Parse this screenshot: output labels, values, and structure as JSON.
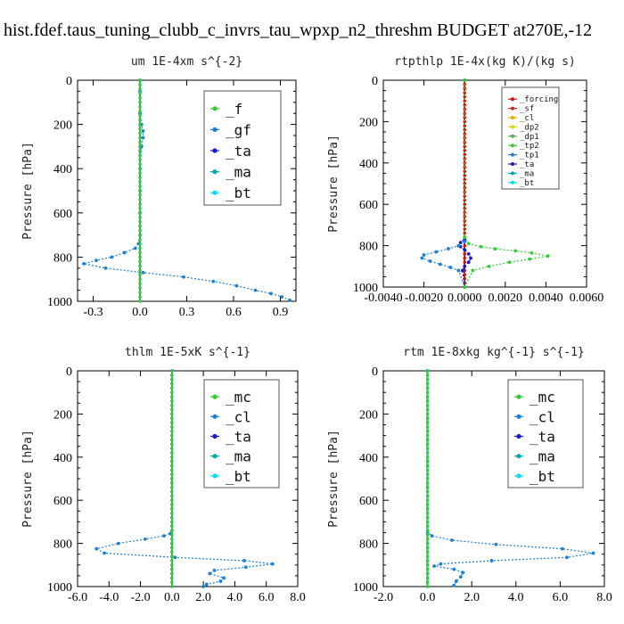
{
  "title": "hist.fdef.taus_tuning_clubb_c_invrs_tau_wpxp_n2_threshm  BUDGET at270E,-12",
  "colors": {
    "f": "#33cc33",
    "gf": "#1e7fd0",
    "ta": "#1a1acc",
    "ma": "#00aaaa",
    "bt": "#00ddee",
    "mc": "#33cc33",
    "cl": "#1e7fd0",
    "forcing": "#cc1111",
    "sf": "#cc2222",
    "cl_small": "#e8a800",
    "dp2": "#d8d800",
    "dp1": "#55aa55",
    "tp2": "#33cc33",
    "tp1": "#1e7fd0"
  },
  "chart_data": [
    {
      "type": "line",
      "title": "um   1E-4xm s^{-2}",
      "ylabel": "Pressure [hPa]",
      "xlim": [
        -0.4,
        1.0
      ],
      "ylim": [
        1000,
        0
      ],
      "xticks": [
        -0.3,
        0.0,
        0.3,
        0.6,
        0.9
      ],
      "xticklabels": [
        "-0.3",
        "0.0",
        "0.3",
        "0.6",
        "0.9"
      ],
      "yticks": [
        0,
        200,
        400,
        600,
        800,
        1000
      ],
      "yticklabels": [
        "0",
        "200",
        "400",
        "600",
        "800",
        "1000"
      ],
      "legend": [
        "_f",
        "_gf",
        "_ta",
        "_ma",
        "_bt"
      ],
      "series": [
        {
          "name": "_f",
          "color_key": "f",
          "x": [
            0,
            0,
            0,
            0,
            0,
            0,
            0,
            0,
            0,
            0,
            0
          ],
          "y": [
            0,
            100,
            200,
            300,
            400,
            500,
            600,
            700,
            800,
            900,
            1000
          ]
        },
        {
          "name": "_gf",
          "color_key": "gf",
          "x": [
            0,
            0,
            0,
            0.01,
            0.02,
            0.02,
            0.01,
            0,
            0,
            0,
            0,
            -0.01,
            -0.03,
            -0.1,
            -0.18,
            -0.28,
            -0.36,
            -0.22,
            0.02,
            0.28,
            0.47,
            0.62,
            0.74,
            0.84,
            0.91,
            0.96
          ],
          "y": [
            0,
            50,
            150,
            200,
            230,
            260,
            300,
            400,
            500,
            600,
            700,
            740,
            760,
            780,
            800,
            815,
            830,
            850,
            870,
            890,
            910,
            930,
            950,
            965,
            980,
            995
          ]
        },
        {
          "name": "_ta",
          "color_key": "ta",
          "x": [
            0,
            0,
            0,
            0,
            0
          ],
          "y": [
            0,
            250,
            500,
            750,
            1000
          ]
        },
        {
          "name": "_ma",
          "color_key": "ma",
          "x": [
            0,
            0,
            0,
            0,
            0
          ],
          "y": [
            0,
            250,
            500,
            750,
            1000
          ]
        },
        {
          "name": "_bt",
          "color_key": "bt",
          "x": [
            0,
            0,
            0,
            0,
            0
          ],
          "y": [
            0,
            250,
            500,
            750,
            1000
          ]
        }
      ]
    },
    {
      "type": "line",
      "title": "rtpthlp   1E-4x(kg K)/(kg s)",
      "ylabel": "Pressure [hPa]",
      "xlim": [
        -0.004,
        0.006
      ],
      "ylim": [
        1000,
        0
      ],
      "xticks": [
        -0.004,
        -0.002,
        0.0,
        0.002,
        0.004,
        0.006
      ],
      "xticklabels": [
        "-0.0040",
        "-0.0020",
        "0.0000",
        "0.0020",
        "0.0040",
        "0.0060"
      ],
      "yticks": [
        0,
        200,
        400,
        600,
        800,
        1000
      ],
      "yticklabels": [
        "0",
        "200",
        "400",
        "600",
        "800",
        "1000"
      ],
      "legend": [
        "_forcing",
        "_sf",
        "_cl",
        "_dp2",
        "_dp1",
        "_tp2",
        "_tp1",
        "_ta",
        "_ma",
        "_bt"
      ],
      "series": [
        {
          "name": "_tp2",
          "color_key": "tp2",
          "x": [
            0,
            0,
            0.0002,
            0.0008,
            0.0015,
            0.0025,
            0.0033,
            0.0041,
            0.0032,
            0.0022,
            0.0012,
            0.0004,
            0
          ],
          "y": [
            0,
            760,
            790,
            805,
            815,
            825,
            835,
            850,
            865,
            880,
            900,
            920,
            1000
          ]
        },
        {
          "name": "_tp1",
          "color_key": "tp1",
          "x": [
            0,
            0,
            -0.0003,
            -0.0008,
            -0.0014,
            -0.002,
            -0.0021,
            -0.0017,
            -0.0012,
            -0.0007,
            -0.0003,
            0
          ],
          "y": [
            0,
            780,
            800,
            815,
            830,
            845,
            860,
            875,
            890,
            905,
            920,
            1000
          ]
        },
        {
          "name": "_ta",
          "color_key": "ta",
          "x": [
            0,
            0,
            -0.0002,
            -0.0002,
            0,
            0.0002,
            0.0003,
            0.0002,
            0,
            -0.0001,
            0
          ],
          "y": [
            0,
            770,
            785,
            805,
            820,
            840,
            860,
            880,
            900,
            920,
            1000
          ]
        },
        {
          "name": "_forcing",
          "color_key": "forcing",
          "x": [
            0,
            0,
            0,
            0,
            0,
            0,
            0,
            0,
            0,
            0,
            0
          ],
          "y": [
            0,
            100,
            200,
            300,
            400,
            500,
            600,
            700,
            800,
            900,
            1000
          ]
        },
        {
          "name": "_sf",
          "color_key": "sf",
          "x": [
            0,
            0
          ],
          "y": [
            0,
            1000
          ]
        },
        {
          "name": "_cl",
          "color_key": "cl_small",
          "x": [
            0,
            0
          ],
          "y": [
            0,
            1000
          ]
        },
        {
          "name": "_dp2",
          "color_key": "dp2",
          "x": [
            0,
            0
          ],
          "y": [
            0,
            1000
          ]
        },
        {
          "name": "_dp1",
          "color_key": "dp1",
          "x": [
            0,
            0
          ],
          "y": [
            0,
            1000
          ]
        },
        {
          "name": "_ma",
          "color_key": "ma",
          "x": [
            0,
            0
          ],
          "y": [
            0,
            1000
          ]
        },
        {
          "name": "_bt",
          "color_key": "bt",
          "x": [
            0,
            0
          ],
          "y": [
            0,
            1000
          ]
        }
      ]
    },
    {
      "type": "line",
      "title": "thlm   1E-5xK s^{-1}",
      "ylabel": "Pressure [hPa]",
      "xlim": [
        -6.0,
        8.0
      ],
      "ylim": [
        1000,
        0
      ],
      "xticks": [
        -6,
        -4,
        -2,
        0,
        2,
        4,
        6,
        8
      ],
      "xticklabels": [
        "-6.0",
        "-4.0",
        "-2.0",
        "0.0",
        "2.0",
        "4.0",
        "6.0",
        "8.0"
      ],
      "yticks": [
        0,
        200,
        400,
        600,
        800,
        1000
      ],
      "yticklabels": [
        "0",
        "200",
        "400",
        "600",
        "800",
        "1000"
      ],
      "legend": [
        "_mc",
        "_cl",
        "_ta",
        "_ma",
        "_bt"
      ],
      "series": [
        {
          "name": "_mc",
          "color_key": "mc",
          "x": [
            0,
            0,
            0,
            0,
            0,
            0,
            0,
            0,
            0,
            0,
            0
          ],
          "y": [
            0,
            100,
            200,
            300,
            400,
            500,
            600,
            700,
            800,
            900,
            1000
          ]
        },
        {
          "name": "_cl",
          "color_key": "cl",
          "x": [
            0,
            0,
            -0.1,
            -0.5,
            -1.7,
            -3.4,
            -4.8,
            -4.3,
            0.2,
            4.6,
            6.4,
            4.7,
            2.7,
            2.4,
            3.3,
            3.1,
            2.2,
            2.0
          ],
          "y": [
            0,
            740,
            755,
            765,
            780,
            800,
            825,
            845,
            865,
            880,
            895,
            910,
            925,
            940,
            960,
            975,
            990,
            1000
          ]
        },
        {
          "name": "_ta",
          "color_key": "ta",
          "x": [
            0,
            0,
            0,
            0,
            0
          ],
          "y": [
            0,
            250,
            500,
            750,
            1000
          ]
        },
        {
          "name": "_ma",
          "color_key": "ma",
          "x": [
            0,
            0,
            0,
            0,
            0
          ],
          "y": [
            0,
            250,
            500,
            750,
            1000
          ]
        },
        {
          "name": "_bt",
          "color_key": "bt",
          "x": [
            0,
            0,
            0,
            0,
            0
          ],
          "y": [
            0,
            250,
            500,
            750,
            1000
          ]
        }
      ]
    },
    {
      "type": "line",
      "title": "rtm   1E-8xkg kg^{-1} s^{-1}",
      "ylabel": "Pressure [hPa]",
      "xlim": [
        -2.0,
        8.0
      ],
      "ylim": [
        1000,
        0
      ],
      "xticks": [
        -2,
        0,
        2,
        4,
        6,
        8
      ],
      "xticklabels": [
        "-2.0",
        "0.0",
        "2.0",
        "4.0",
        "6.0",
        "8.0"
      ],
      "yticks": [
        0,
        200,
        400,
        600,
        800,
        1000
      ],
      "yticklabels": [
        "0",
        "200",
        "400",
        "600",
        "800",
        "1000"
      ],
      "legend": [
        "_mc",
        "_cl",
        "_ta",
        "_ma",
        "_bt"
      ],
      "series": [
        {
          "name": "_mc",
          "color_key": "mc",
          "x": [
            0,
            0,
            0,
            0,
            0,
            0,
            0,
            0,
            0,
            0,
            0
          ],
          "y": [
            0,
            100,
            200,
            300,
            400,
            500,
            600,
            700,
            800,
            900,
            1000
          ]
        },
        {
          "name": "_cl",
          "color_key": "cl",
          "x": [
            0,
            0,
            0.2,
            1.1,
            3.1,
            6.1,
            7.5,
            6.3,
            2.9,
            0.6,
            0.3,
            1.2,
            1.6,
            1.5,
            1.3,
            1.2
          ],
          "y": [
            0,
            750,
            765,
            785,
            805,
            825,
            845,
            865,
            880,
            895,
            905,
            920,
            935,
            955,
            975,
            995
          ]
        },
        {
          "name": "_ta",
          "color_key": "ta",
          "x": [
            0,
            0,
            0,
            0,
            0
          ],
          "y": [
            0,
            250,
            500,
            750,
            1000
          ]
        },
        {
          "name": "_ma",
          "color_key": "ma",
          "x": [
            0,
            0,
            0,
            0,
            0
          ],
          "y": [
            0,
            250,
            500,
            750,
            1000
          ]
        },
        {
          "name": "_bt",
          "color_key": "bt",
          "x": [
            0,
            0,
            0,
            0,
            0
          ],
          "y": [
            0,
            250,
            500,
            750,
            1000
          ]
        }
      ]
    }
  ]
}
